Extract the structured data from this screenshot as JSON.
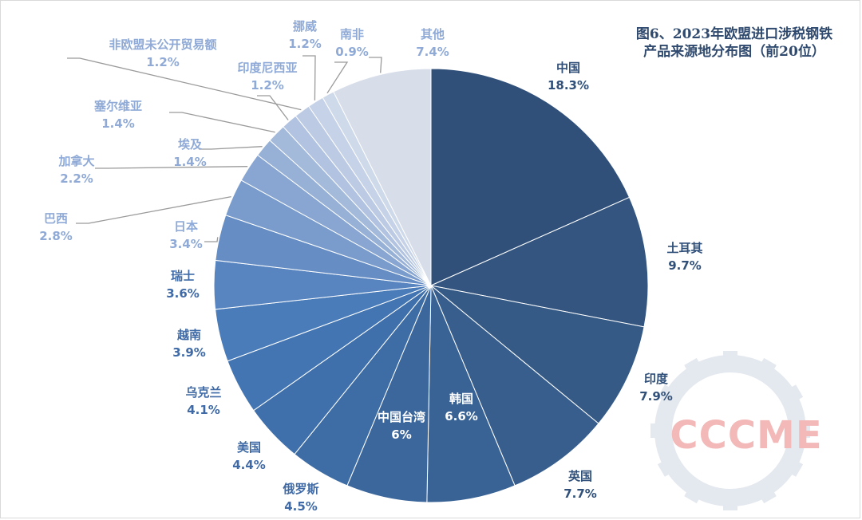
{
  "chart_data": {
    "type": "pie",
    "title_line1": "图6、2023年欧盟进口涉税钢铁",
    "title_line2": "产品来源地分布图（前20位）",
    "slices": [
      {
        "name": "中国",
        "value": 18.3,
        "value_label": "18.3%",
        "color": "#30507a"
      },
      {
        "name": "土耳其",
        "value": 9.7,
        "value_label": "9.7%",
        "color": "#33557f"
      },
      {
        "name": "印度",
        "value": 7.9,
        "value_label": "7.9%",
        "color": "#355a86"
      },
      {
        "name": "英国",
        "value": 7.7,
        "value_label": "7.7%",
        "color": "#375e8d"
      },
      {
        "name": "韩国",
        "value": 6.6,
        "value_label": "6.6%",
        "color": "#3a6395"
      },
      {
        "name": "中国台湾",
        "value": 6.0,
        "value_label": "6%",
        "color": "#3c679c"
      },
      {
        "name": "俄罗斯",
        "value": 4.5,
        "value_label": "4.5%",
        "color": "#3e6ca4"
      },
      {
        "name": "美国",
        "value": 4.4,
        "value_label": "4.4%",
        "color": "#4070ab"
      },
      {
        "name": "乌克兰",
        "value": 4.1,
        "value_label": "4.1%",
        "color": "#4375b3"
      },
      {
        "name": "越南",
        "value": 3.9,
        "value_label": "3.9%",
        "color": "#4a7cba"
      },
      {
        "name": "瑞士",
        "value": 3.6,
        "value_label": "3.6%",
        "color": "#5884c0"
      },
      {
        "name": "日本",
        "value": 3.4,
        "value_label": "3.4%",
        "color": "#668ec5"
      },
      {
        "name": "巴西",
        "value": 2.8,
        "value_label": "2.8%",
        "color": "#7a9ccc"
      },
      {
        "name": "加拿大",
        "value": 2.2,
        "value_label": "2.2%",
        "color": "#88a6d1"
      },
      {
        "name": "埃及",
        "value": 1.4,
        "value_label": "1.4%",
        "color": "#97b0d6"
      },
      {
        "name": "塞尔维亚",
        "value": 1.4,
        "value_label": "1.4%",
        "color": "#a4badb"
      },
      {
        "name": "印度尼西亚",
        "value": 1.2,
        "value_label": "1.2%",
        "color": "#b1c3e0"
      },
      {
        "name": "非欧盟未公开贸易额",
        "value": 1.2,
        "value_label": "1.2%",
        "color": "#bccbe3"
      },
      {
        "name": "挪威",
        "value": 1.2,
        "value_label": "1.2%",
        "color": "#c6d2e7"
      },
      {
        "name": "南非",
        "value": 0.9,
        "value_label": "0.9%",
        "color": "#ced9ea"
      },
      {
        "name": "其他",
        "value": 7.4,
        "value_label": "7.4%",
        "color": "#d7deea"
      }
    ],
    "watermark": "CCCME"
  }
}
